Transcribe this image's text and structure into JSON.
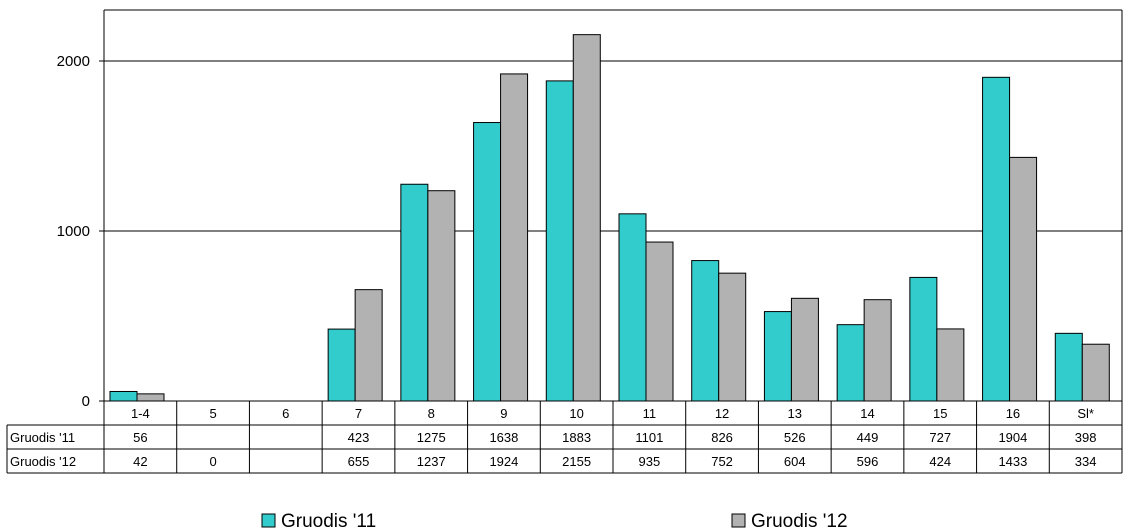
{
  "chart_data": {
    "type": "bar",
    "categories": [
      "1-4",
      "5",
      "6",
      "7",
      "8",
      "9",
      "10",
      "11",
      "12",
      "13",
      "14",
      "15",
      "16",
      "Sl*"
    ],
    "series": [
      {
        "name": "Gruodis '11",
        "color": "#33CCCC",
        "values": [
          56,
          null,
          null,
          423,
          1275,
          1638,
          1883,
          1101,
          826,
          526,
          449,
          727,
          1904,
          398
        ],
        "labels": [
          "56",
          "",
          "",
          "423",
          "1275",
          "1638",
          "1883",
          "1101",
          "826",
          "526",
          "449",
          "727",
          "1904",
          "398"
        ]
      },
      {
        "name": "Gruodis '12",
        "color": "#B2B2B2",
        "values": [
          42,
          0,
          null,
          655,
          1237,
          1924,
          2155,
          935,
          752,
          604,
          596,
          424,
          1433,
          334
        ],
        "labels": [
          "42",
          "0",
          "",
          "655",
          "1237",
          "1924",
          "2155",
          "935",
          "752",
          "604",
          "596",
          "424",
          "1433",
          "334"
        ]
      }
    ],
    "yticks": [
      "0",
      "1000",
      "2000"
    ],
    "ylim": [
      0,
      2300
    ],
    "grid": true,
    "legend": "bottom"
  }
}
